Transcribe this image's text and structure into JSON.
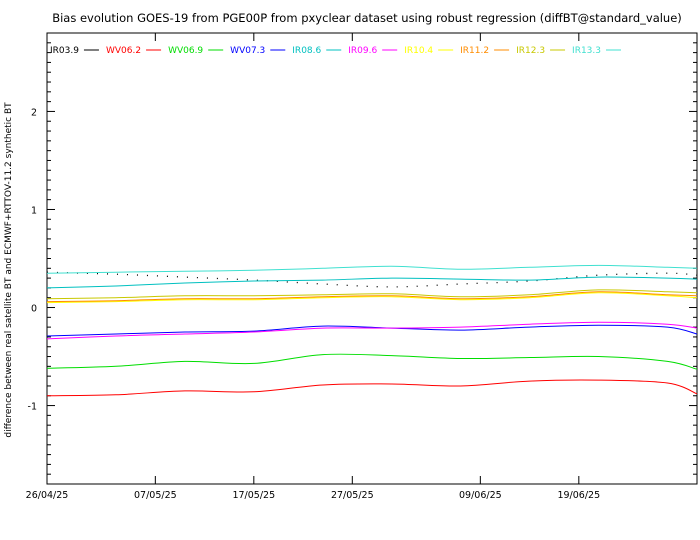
{
  "chart_data": {
    "type": "line",
    "title": "Bias evolution GOES-19 from PGE00P from pxyclear dataset using robust regression (diffBT@standard_value)",
    "ylabel": "difference between real satellite BT and ECMWF+RTTOV-11.2 synthetic BT",
    "xlabel": "",
    "xlim": [
      "2025-04-26",
      "2025-07-01"
    ],
    "ylim": [
      -1.8,
      2.8
    ],
    "x_ticks": [
      "26/04/25",
      "07/05/25",
      "17/05/25",
      "27/05/25",
      "09/06/25",
      "19/06/25"
    ],
    "x_tick_dates": [
      "2025-04-26",
      "2025-05-07",
      "2025-05-17",
      "2025-05-27",
      "2025-06-09",
      "2025-06-19"
    ],
    "y_ticks": [
      -1,
      0,
      1,
      2
    ],
    "grid": false,
    "legend_position": "top-left",
    "x": [
      "2025-04-26",
      "2025-05-03",
      "2025-05-10",
      "2025-05-17",
      "2025-05-24",
      "2025-05-31",
      "2025-06-07",
      "2025-06-14",
      "2025-06-21",
      "2025-06-28",
      "2025-07-01"
    ],
    "series": [
      {
        "name": "IR03.9",
        "color": "#000000",
        "style": "dotted",
        "values": [
          0.36,
          0.34,
          0.31,
          0.28,
          0.24,
          0.21,
          0.24,
          0.27,
          0.33,
          0.35,
          0.33
        ]
      },
      {
        "name": "WV06.2",
        "color": "#ff0000",
        "style": "solid",
        "values": [
          -0.9,
          -0.89,
          -0.85,
          -0.86,
          -0.79,
          -0.78,
          -0.8,
          -0.75,
          -0.74,
          -0.77,
          -0.88
        ]
      },
      {
        "name": "WV06.9",
        "color": "#00dd00",
        "style": "solid",
        "values": [
          -0.62,
          -0.6,
          -0.55,
          -0.57,
          -0.48,
          -0.49,
          -0.52,
          -0.51,
          -0.5,
          -0.55,
          -0.63
        ]
      },
      {
        "name": "WV07.3",
        "color": "#0000ff",
        "style": "solid",
        "values": [
          -0.29,
          -0.27,
          -0.25,
          -0.24,
          -0.19,
          -0.21,
          -0.23,
          -0.2,
          -0.18,
          -0.2,
          -0.27
        ]
      },
      {
        "name": "IR08.6",
        "color": "#00c0c0",
        "style": "solid",
        "values": [
          0.2,
          0.22,
          0.25,
          0.27,
          0.28,
          0.3,
          0.29,
          0.28,
          0.31,
          0.3,
          0.29
        ]
      },
      {
        "name": "IR09.6",
        "color": "#ff00ff",
        "style": "solid",
        "values": [
          -0.32,
          -0.29,
          -0.27,
          -0.25,
          -0.21,
          -0.21,
          -0.2,
          -0.17,
          -0.15,
          -0.17,
          -0.21
        ]
      },
      {
        "name": "IR10.4",
        "color": "#ffff00",
        "style": "solid",
        "values": [
          0.05,
          0.06,
          0.08,
          0.08,
          0.1,
          0.11,
          0.08,
          0.1,
          0.15,
          0.12,
          0.1
        ]
      },
      {
        "name": "IR11.2",
        "color": "#ff8c00",
        "style": "solid",
        "values": [
          0.06,
          0.07,
          0.09,
          0.09,
          0.11,
          0.12,
          0.09,
          0.11,
          0.16,
          0.13,
          0.12
        ]
      },
      {
        "name": "IR12.3",
        "color": "#c8c800",
        "style": "solid",
        "values": [
          0.09,
          0.1,
          0.12,
          0.12,
          0.13,
          0.14,
          0.11,
          0.13,
          0.18,
          0.16,
          0.15
        ]
      },
      {
        "name": "IR13.3",
        "color": "#40e0d0",
        "style": "solid",
        "values": [
          0.35,
          0.36,
          0.37,
          0.38,
          0.4,
          0.42,
          0.39,
          0.41,
          0.43,
          0.41,
          0.4
        ]
      }
    ]
  }
}
